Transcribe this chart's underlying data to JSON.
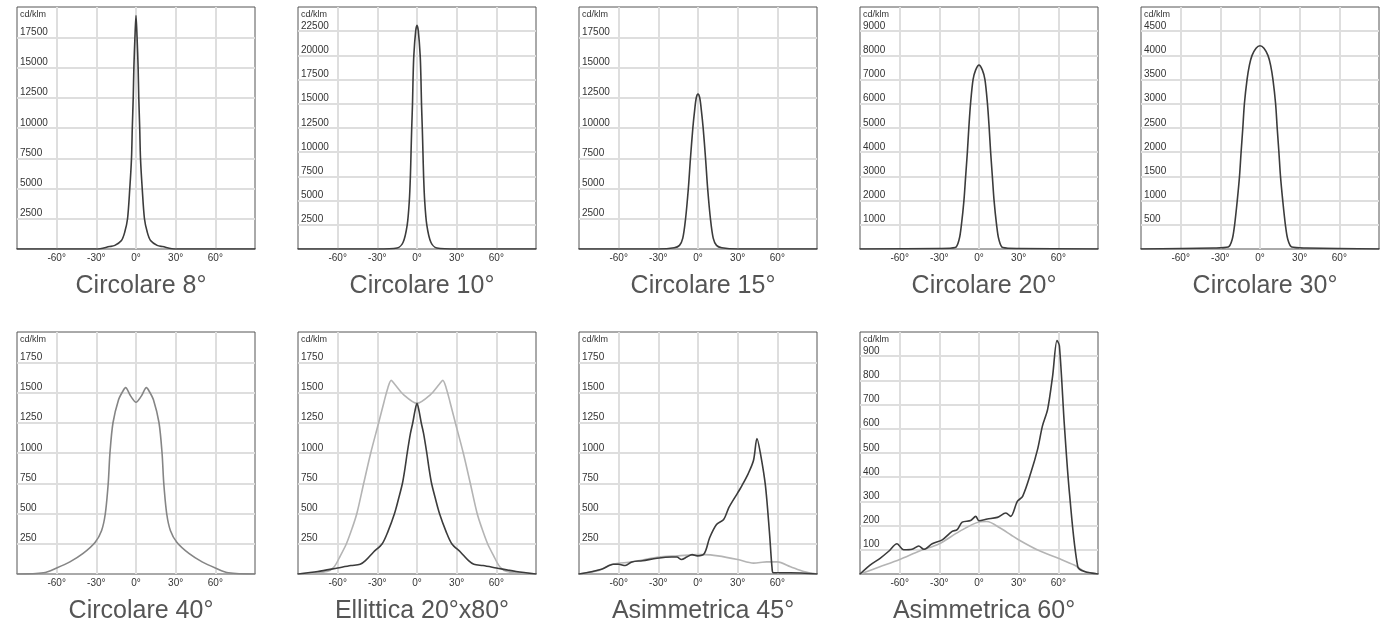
{
  "chart_data": [
    {
      "type": "line",
      "title": "Circolare 8°",
      "ylabel": "cd/klm",
      "xlim": [
        -90,
        90
      ],
      "xticks": [
        {
          "value": -60,
          "label": "-60°"
        },
        {
          "value": -30,
          "label": "-30°"
        },
        {
          "value": 0,
          "label": "0°"
        },
        {
          "value": 30,
          "label": "30°"
        },
        {
          "value": 60,
          "label": "60°"
        }
      ],
      "ylim": [
        0,
        20000
      ],
      "yticks": [
        2500,
        5000,
        7500,
        10000,
        12500,
        15000,
        17500
      ],
      "grid": true,
      "series": [
        {
          "color": "#3c3c3c",
          "x": [
            -90,
            -30,
            -20,
            -16,
            -11,
            -8.5,
            -6.4,
            -4.7,
            -3.4,
            -2.8,
            -2.1,
            -1.6,
            -0.8,
            0,
            0.8,
            1.6,
            2.1,
            2.8,
            3.4,
            4.7,
            6.4,
            8.5,
            11,
            16,
            20,
            30,
            90
          ],
          "values": [
            0,
            0,
            200,
            300,
            700,
            1400,
            2500,
            5000,
            7500,
            10000,
            12500,
            15000,
            17500,
            19300,
            17500,
            15000,
            12500,
            10000,
            7500,
            5000,
            2500,
            1400,
            700,
            300,
            200,
            0,
            0
          ]
        }
      ]
    },
    {
      "type": "line",
      "title": "Circolare 10°",
      "ylabel": "cd/klm",
      "xlim": [
        -90,
        90
      ],
      "xticks": [
        {
          "value": -60,
          "label": "-60°"
        },
        {
          "value": -30,
          "label": "-30°"
        },
        {
          "value": 0,
          "label": "0°"
        },
        {
          "value": 30,
          "label": "30°"
        },
        {
          "value": 60,
          "label": "60°"
        }
      ],
      "ylim": [
        0,
        25000
      ],
      "yticks": [
        2500,
        5000,
        7500,
        10000,
        12500,
        15000,
        17500,
        20000,
        22500
      ],
      "grid": true,
      "series": [
        {
          "color": "#3c3c3c",
          "x": [
            -90,
            -30,
            -15,
            -10.5,
            -7.4,
            -5.8,
            -5,
            -4.5,
            -4,
            -3.4,
            -3,
            -2.4,
            -1,
            0,
            1,
            2.4,
            3,
            3.4,
            4,
            4.5,
            5,
            5.8,
            7.4,
            10.5,
            15,
            30,
            90
          ],
          "values": [
            0,
            0,
            100,
            700,
            2500,
            5000,
            7500,
            10000,
            12500,
            15000,
            17500,
            20000,
            22500,
            23100,
            22500,
            20000,
            17500,
            15000,
            12500,
            10000,
            7500,
            5000,
            2500,
            700,
            100,
            0,
            0
          ]
        }
      ]
    },
    {
      "type": "line",
      "title": "Circolare 15°",
      "ylabel": "cd/klm",
      "xlim": [
        -90,
        90
      ],
      "xticks": [
        {
          "value": -60,
          "label": "-60°"
        },
        {
          "value": -30,
          "label": "-30°"
        },
        {
          "value": 0,
          "label": "0°"
        },
        {
          "value": 30,
          "label": "30°"
        },
        {
          "value": 60,
          "label": "60°"
        }
      ],
      "ylim": [
        0,
        20000
      ],
      "yticks": [
        2500,
        5000,
        7500,
        10000,
        12500,
        15000,
        17500
      ],
      "grid": true,
      "series": [
        {
          "color": "#3c3c3c",
          "x": [
            -90,
            -30,
            -18,
            -14,
            -11.5,
            -9.4,
            -7.3,
            -5.7,
            -3.9,
            -2.5,
            -1.3,
            0,
            1.3,
            2.5,
            3.9,
            5.7,
            7.3,
            9.4,
            11.5,
            14,
            18,
            30,
            90
          ],
          "values": [
            0,
            0,
            100,
            300,
            900,
            2500,
            5000,
            7500,
            10000,
            11500,
            12500,
            12800,
            12500,
            11500,
            10000,
            7500,
            5000,
            2500,
            900,
            300,
            100,
            0,
            0
          ]
        }
      ]
    },
    {
      "type": "line",
      "title": "Circolare 20°",
      "ylabel": "cd/klm",
      "xlim": [
        -90,
        90
      ],
      "xticks": [
        {
          "value": -60,
          "label": "-60°"
        },
        {
          "value": -30,
          "label": "-30°"
        },
        {
          "value": 0,
          "label": "0°"
        },
        {
          "value": 30,
          "label": "30°"
        },
        {
          "value": 60,
          "label": "60°"
        }
      ],
      "ylim": [
        0,
        10000
      ],
      "yticks": [
        1000,
        2000,
        3000,
        4000,
        5000,
        6000,
        7000,
        8000,
        9000
      ],
      "grid": true,
      "series": [
        {
          "color": "#3c3c3c",
          "x": [
            -90,
            -30,
            -18,
            -15,
            -13.3,
            -11.4,
            -10.1,
            -8.8,
            -7.7,
            -6.4,
            -4.5,
            -2.5,
            0,
            2.5,
            4.5,
            6.4,
            7.7,
            8.8,
            10.1,
            11.4,
            13.3,
            15,
            18,
            30,
            90
          ],
          "values": [
            0,
            20,
            60,
            400,
            1000,
            2000,
            3000,
            4000,
            5000,
            6000,
            7000,
            7400,
            7600,
            7400,
            7000,
            6000,
            5000,
            4000,
            3000,
            2000,
            1000,
            400,
            60,
            20,
            0
          ]
        }
      ]
    },
    {
      "type": "line",
      "title": "Circolare 30°",
      "ylabel": "cd/klm",
      "xlim": [
        -90,
        90
      ],
      "xticks": [
        {
          "value": -60,
          "label": "-60°"
        },
        {
          "value": -30,
          "label": "-30°"
        },
        {
          "value": 0,
          "label": "0°"
        },
        {
          "value": 30,
          "label": "30°"
        },
        {
          "value": 60,
          "label": "60°"
        }
      ],
      "ylim": [
        0,
        5000
      ],
      "yticks": [
        500,
        1000,
        1500,
        2000,
        2500,
        3000,
        3500,
        4000,
        4500
      ],
      "grid": true,
      "series": [
        {
          "color": "#3c3c3c",
          "x": [
            -90,
            -35,
            -24,
            -21,
            -19.2,
            -17.2,
            -15.5,
            -14.3,
            -13,
            -11.8,
            -9.8,
            -8,
            -6,
            -3,
            0,
            3,
            6,
            8,
            9.8,
            11.8,
            13,
            14.3,
            15.5,
            17.2,
            19.2,
            21,
            24,
            35,
            90
          ],
          "values": [
            0,
            20,
            40,
            200,
            500,
            1000,
            1500,
            2000,
            2500,
            3000,
            3500,
            3800,
            4000,
            4150,
            4200,
            4150,
            4000,
            3800,
            3500,
            3000,
            2500,
            2000,
            1500,
            1000,
            500,
            200,
            40,
            20,
            0
          ]
        }
      ]
    },
    {
      "type": "line",
      "title": "Circolare 40°",
      "ylabel": "cd/klm",
      "xlim": [
        -90,
        90
      ],
      "xticks": [
        {
          "value": -60,
          "label": "-60°"
        },
        {
          "value": -30,
          "label": "-30°"
        },
        {
          "value": 0,
          "label": "0°"
        },
        {
          "value": 30,
          "label": "30°"
        },
        {
          "value": 60,
          "label": "60°"
        }
      ],
      "ylim": [
        0,
        2000
      ],
      "yticks": [
        250,
        500,
        750,
        1000,
        1250,
        1500,
        1750
      ],
      "grid": true,
      "series": [
        {
          "color": "#858585",
          "x": [
            -90,
            -70,
            -60,
            -50,
            -40,
            -31,
            -26,
            -23.2,
            -21,
            -19.7,
            -17.4,
            -13.2,
            -10,
            -7.9,
            -4,
            0,
            4,
            7.9,
            10,
            13.2,
            17.4,
            19.7,
            21,
            23.2,
            26,
            31,
            40,
            50,
            60,
            70,
            90
          ],
          "values": [
            0,
            10,
            50,
            100,
            170,
            260,
            360,
            500,
            750,
            1000,
            1250,
            1440,
            1510,
            1540,
            1470,
            1420,
            1470,
            1540,
            1510,
            1440,
            1250,
            1000,
            750,
            500,
            360,
            260,
            170,
            100,
            50,
            10,
            0
          ]
        }
      ]
    },
    {
      "type": "line",
      "title": "Ellittica 20°x80°",
      "ylabel": "cd/klm",
      "xlim": [
        -90,
        90
      ],
      "xticks": [
        {
          "value": -60,
          "label": "-60°"
        },
        {
          "value": -30,
          "label": "-30°"
        },
        {
          "value": 0,
          "label": "0°"
        },
        {
          "value": 30,
          "label": "30°"
        },
        {
          "value": 60,
          "label": "60°"
        }
      ],
      "ylim": [
        0,
        2000
      ],
      "yticks": [
        250,
        500,
        750,
        1000,
        1250,
        1500,
        1750
      ],
      "grid": true,
      "series": [
        {
          "color": "#b4b4b4",
          "x": [
            -90,
            -80,
            -68,
            -62.6,
            -58,
            -53.4,
            -49,
            -45.5,
            -40.3,
            -35,
            -29,
            -25,
            -22,
            -19.5,
            -17,
            -10,
            0,
            10,
            17,
            19.5,
            22,
            25,
            29,
            35,
            40.3,
            45.5,
            49,
            53.4,
            58,
            62.6,
            68,
            80,
            90
          ],
          "values": [
            0,
            10,
            20,
            60,
            150,
            250,
            380,
            500,
            750,
            1000,
            1250,
            1420,
            1540,
            1600,
            1570,
            1480,
            1410,
            1480,
            1570,
            1600,
            1540,
            1420,
            1250,
            1000,
            750,
            500,
            380,
            250,
            150,
            60,
            20,
            10,
            0
          ]
        },
        {
          "color": "#3c3c3c",
          "x": [
            -90,
            -75,
            -60,
            -50,
            -43,
            -39,
            -33,
            -26.3,
            -22,
            -17,
            -14,
            -11,
            -9,
            -7.4,
            -5,
            -3.2,
            -1.5,
            0,
            1.5,
            3.2,
            5,
            7.4,
            9,
            11,
            14,
            17,
            22,
            26.3,
            33,
            39,
            43,
            50,
            60,
            75,
            90
          ],
          "values": [
            0,
            20,
            50,
            70,
            80,
            110,
            180,
            250,
            350,
            500,
            620,
            750,
            880,
            1000,
            1160,
            1250,
            1350,
            1410,
            1350,
            1250,
            1160,
            1000,
            880,
            750,
            620,
            500,
            350,
            250,
            180,
            110,
            80,
            70,
            50,
            20,
            0
          ]
        }
      ]
    },
    {
      "type": "line",
      "title": "Asimmetrica 45°",
      "ylabel": "cd/klm",
      "xlim": [
        -90,
        90
      ],
      "xticks": [
        {
          "value": -60,
          "label": "-60°"
        },
        {
          "value": -30,
          "label": "-30°"
        },
        {
          "value": 0,
          "label": "0°"
        },
        {
          "value": 30,
          "label": "30°"
        },
        {
          "value": 60,
          "label": "60°"
        }
      ],
      "ylim": [
        0,
        2000
      ],
      "yticks": [
        250,
        500,
        750,
        1000,
        1250,
        1500,
        1750
      ],
      "grid": true,
      "series": [
        {
          "color": "#b4b4b4",
          "x": [
            -90,
            -75,
            -65,
            -50,
            -30,
            -15,
            0,
            5,
            15,
            30,
            42,
            52,
            60,
            70,
            80,
            90
          ],
          "values": [
            0,
            30,
            80,
            100,
            140,
            150,
            160,
            160,
            150,
            120,
            90,
            100,
            100,
            60,
            20,
            0
          ]
        },
        {
          "color": "#3c3c3c",
          "x": [
            -90,
            -73,
            -64,
            -60,
            -55,
            -50,
            -42,
            -31,
            -20,
            -16,
            -12.5,
            -8.5,
            -4.5,
            -0.5,
            4.8,
            8.8,
            14,
            19.4,
            23.4,
            30,
            32.7,
            38,
            42,
            44.6,
            47.3,
            51,
            54,
            56,
            57,
            70,
            90
          ],
          "values": [
            0,
            40,
            80,
            80,
            70,
            100,
            110,
            130,
            140,
            140,
            120,
            140,
            160,
            150,
            170,
            300,
            410,
            450,
            550,
            670,
            720,
            830,
            940,
            1120,
            990,
            730,
            350,
            50,
            10,
            10,
            0
          ]
        }
      ]
    },
    {
      "type": "line",
      "title": "Asimmetrica 60°",
      "ylabel": "cd/klm",
      "xlim": [
        -90,
        90
      ],
      "xticks": [
        {
          "value": -60,
          "label": "-60°"
        },
        {
          "value": -30,
          "label": "-30°"
        },
        {
          "value": 0,
          "label": "0°"
        },
        {
          "value": 30,
          "label": "30°"
        },
        {
          "value": 60,
          "label": "60°"
        }
      ],
      "ylim": [
        0,
        1000
      ],
      "yticks": [
        100,
        200,
        300,
        400,
        500,
        600,
        700,
        800,
        900
      ],
      "grid": true,
      "series": [
        {
          "color": "#b4b4b4",
          "x": [
            -90,
            -75,
            -60,
            -45,
            -30,
            -15,
            0,
            6,
            16,
            24,
            30,
            44,
            60,
            72,
            80,
            90
          ],
          "values": [
            0,
            30,
            60,
            95,
            125,
            175,
            215,
            217,
            190,
            162,
            141,
            100,
            65,
            37,
            10,
            0
          ]
        },
        {
          "color": "#3c3c3c",
          "x": [
            -90,
            -82.4,
            -74.8,
            -68.5,
            -62,
            -57,
            -50.6,
            -45.6,
            -41.8,
            -35.4,
            -27.8,
            -20.3,
            -16.5,
            -12.7,
            -6.3,
            -2.5,
            0,
            6.3,
            13.9,
            20.3,
            24,
            29,
            33,
            39.2,
            44.3,
            48,
            51.9,
            55.7,
            59,
            60.8,
            64.6,
            68.4,
            74.7,
            79.8,
            90
          ],
          "values": [
            0,
            37,
            65,
            93,
            125,
            100,
            102,
            116,
            102,
            125,
            141,
            176,
            183,
            214,
            221,
            238,
            220,
            227,
            234,
            252,
            238,
            300,
            321,
            418,
            515,
            612,
            680,
            819,
            965,
            943,
            612,
            335,
            30,
            10,
            0
          ]
        }
      ]
    }
  ]
}
